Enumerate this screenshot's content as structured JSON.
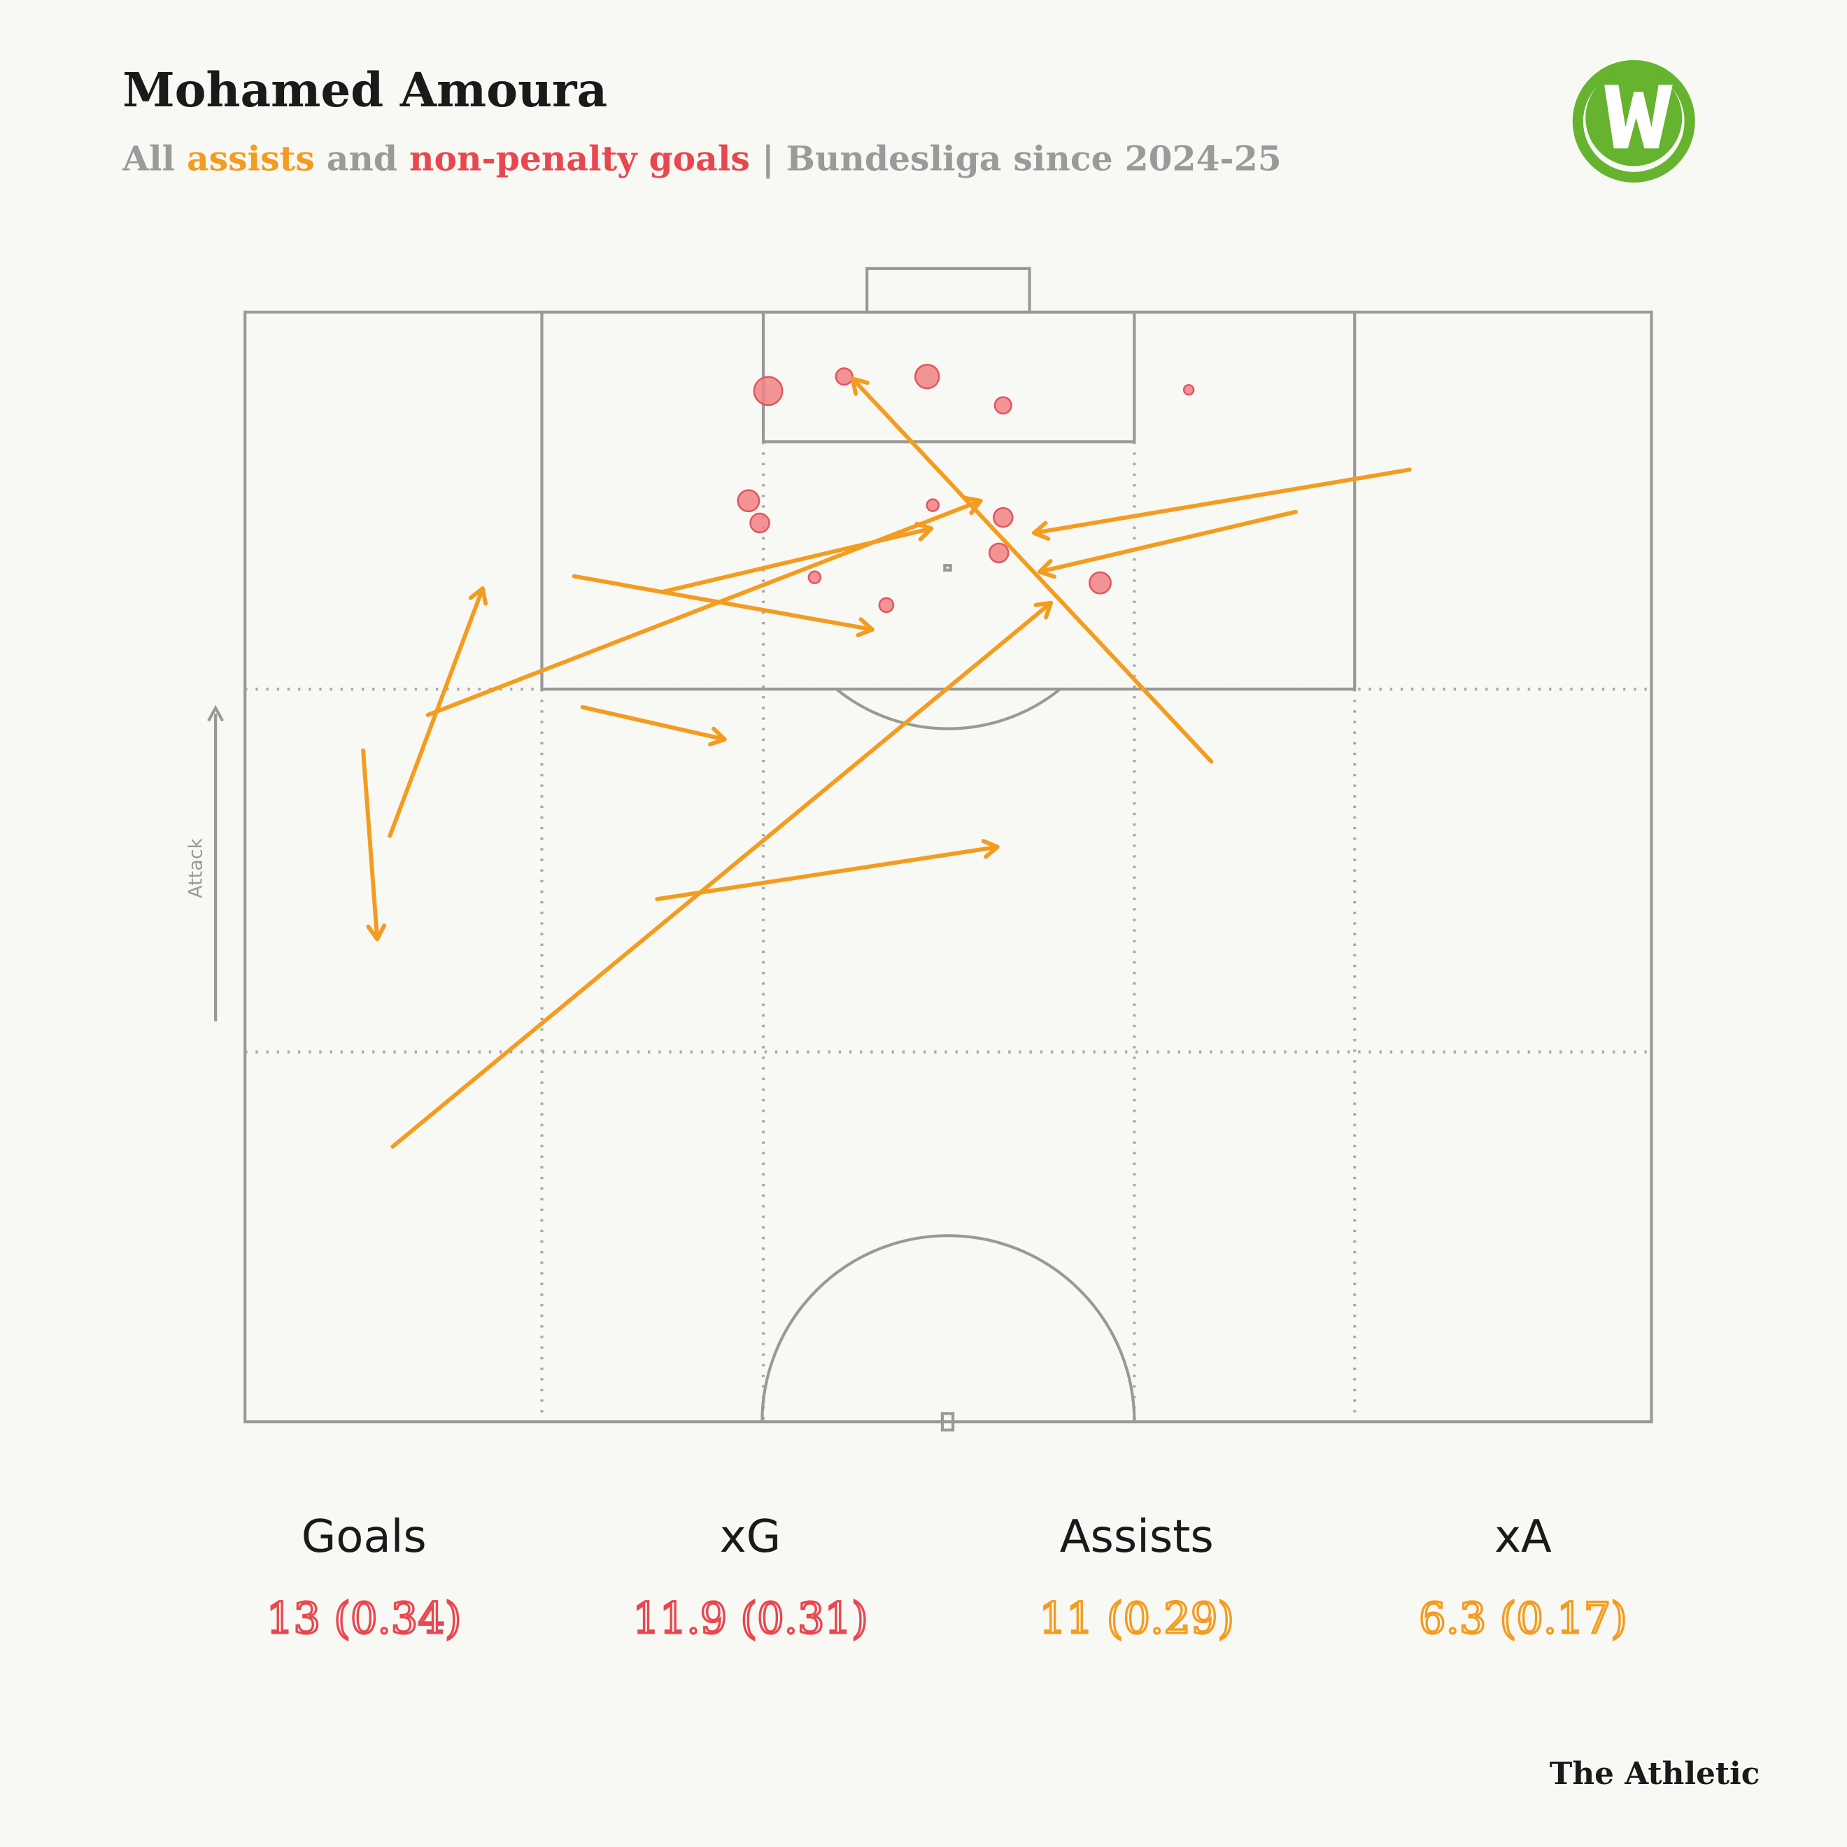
{
  "chart_data": {
    "type": "pitch",
    "title": "Mohamed Amoura",
    "subtitle": [
      {
        "text": "All ",
        "color": "#9a9a9a"
      },
      {
        "text": "assists",
        "color": "#f39c1f"
      },
      {
        "text": " and ",
        "color": "#9a9a9a"
      },
      {
        "text": "non-penalty goals",
        "color": "#e8474f"
      },
      {
        "text": " | Bundesliga since 2024-25",
        "color": "#9a9a9a"
      }
    ],
    "direction_label": "Attack",
    "xlim": [
      0,
      100
    ],
    "ylim": [
      0,
      100
    ],
    "goal_color": "#f28282",
    "assist_color": "#f39c1f",
    "goals": [
      {
        "x": 37.2,
        "y": 7.1,
        "xg": 0.85
      },
      {
        "x": 42.6,
        "y": 5.8,
        "xg": 0.29
      },
      {
        "x": 48.5,
        "y": 5.8,
        "xg": 0.6
      },
      {
        "x": 53.9,
        "y": 8.4,
        "xg": 0.29
      },
      {
        "x": 67.1,
        "y": 7.0,
        "xg": 0.1
      },
      {
        "x": 35.8,
        "y": 17.0,
        "xg": 0.48
      },
      {
        "x": 36.6,
        "y": 19.0,
        "xg": 0.38
      },
      {
        "x": 48.9,
        "y": 17.4,
        "xg": 0.15
      },
      {
        "x": 53.9,
        "y": 18.5,
        "xg": 0.38
      },
      {
        "x": 53.6,
        "y": 21.7,
        "xg": 0.38
      },
      {
        "x": 40.5,
        "y": 23.9,
        "xg": 0.15
      },
      {
        "x": 45.6,
        "y": 26.4,
        "xg": 0.21
      },
      {
        "x": 60.8,
        "y": 24.4,
        "xg": 0.48
      }
    ],
    "assists": [
      {
        "x": [
          68.7,
          43.2
        ],
        "y": [
          40.5,
          6.0
        ]
      },
      {
        "x": [
          82.8,
          56.1
        ],
        "y": [
          14.2,
          19.9
        ]
      },
      {
        "x": [
          74.7,
          56.5
        ],
        "y": [
          18.0,
          23.4
        ]
      },
      {
        "x": [
          10.5,
          57.3
        ],
        "y": [
          75.2,
          26.2
        ]
      },
      {
        "x": [
          13.0,
          52.3
        ],
        "y": [
          36.3,
          17.0
        ]
      },
      {
        "x": [
          29.7,
          48.8
        ],
        "y": [
          25.2,
          19.5
        ]
      },
      {
        "x": [
          23.4,
          44.6
        ],
        "y": [
          23.8,
          28.6
        ]
      },
      {
        "x": [
          24.0,
          34.1
        ],
        "y": [
          35.6,
          38.5
        ]
      },
      {
        "x": [
          29.3,
          53.5
        ],
        "y": [
          52.9,
          48.2
        ]
      },
      {
        "x": [
          10.3,
          16.9
        ],
        "y": [
          47.2,
          24.9
        ]
      },
      {
        "x": [
          8.4,
          9.4
        ],
        "y": [
          39.5,
          56.5
        ]
      }
    ],
    "stats": [
      {
        "label": "Goals",
        "value": "13 (0.34)",
        "color": "#e8474f"
      },
      {
        "label": "xG",
        "value": "11.9 (0.31)",
        "color": "#e8474f"
      },
      {
        "label": "Assists",
        "value": "11 (0.29)",
        "color": "#f39c1f"
      },
      {
        "label": "xA",
        "value": "6.3 (0.17)",
        "color": "#f39c1f"
      }
    ],
    "source": "The Athletic"
  }
}
